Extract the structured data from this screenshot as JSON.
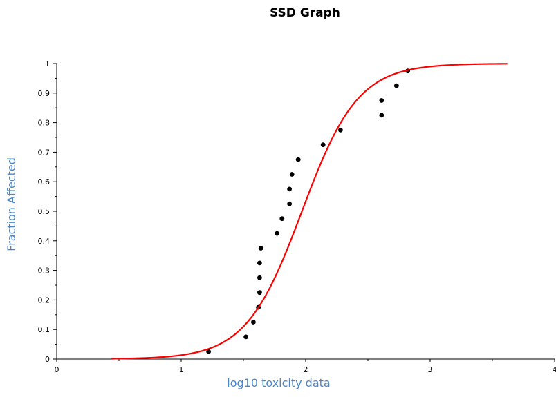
{
  "chart_data": {
    "type": "scatter",
    "title": "SSD Graph",
    "xlabel": "log10 toxicity data",
    "ylabel": "Fraction Affected",
    "xlim": [
      0,
      4
    ],
    "ylim": [
      0,
      1
    ],
    "x_ticks": [
      "0",
      "1",
      "2",
      "3",
      "4"
    ],
    "y_ticks": [
      "0",
      "0.1",
      "0.2",
      "0.3",
      "0.4",
      "0.5",
      "0.6",
      "0.7",
      "0.8",
      "0.9",
      "1"
    ],
    "grid": false,
    "legend": "none",
    "label_color": "#4a86c8",
    "series": [
      {
        "kind": "scatter",
        "color": "#000000",
        "points": [
          [
            1.22,
            0.025
          ],
          [
            1.52,
            0.075
          ],
          [
            1.58,
            0.125
          ],
          [
            1.62,
            0.175
          ],
          [
            1.63,
            0.225
          ],
          [
            1.63,
            0.275
          ],
          [
            1.63,
            0.325
          ],
          [
            1.64,
            0.375
          ],
          [
            1.77,
            0.425
          ],
          [
            1.81,
            0.475
          ],
          [
            1.87,
            0.525
          ],
          [
            1.87,
            0.575
          ],
          [
            1.89,
            0.625
          ],
          [
            1.94,
            0.675
          ],
          [
            2.14,
            0.725
          ],
          [
            2.28,
            0.775
          ],
          [
            2.61,
            0.825
          ],
          [
            2.61,
            0.875
          ],
          [
            2.73,
            0.925
          ],
          [
            2.82,
            0.975
          ]
        ]
      },
      {
        "kind": "line",
        "color": "#ff0000",
        "model": "logistic",
        "mean": 1.97,
        "scale": 0.225,
        "x_range": [
          0.44,
          3.62
        ]
      }
    ]
  }
}
